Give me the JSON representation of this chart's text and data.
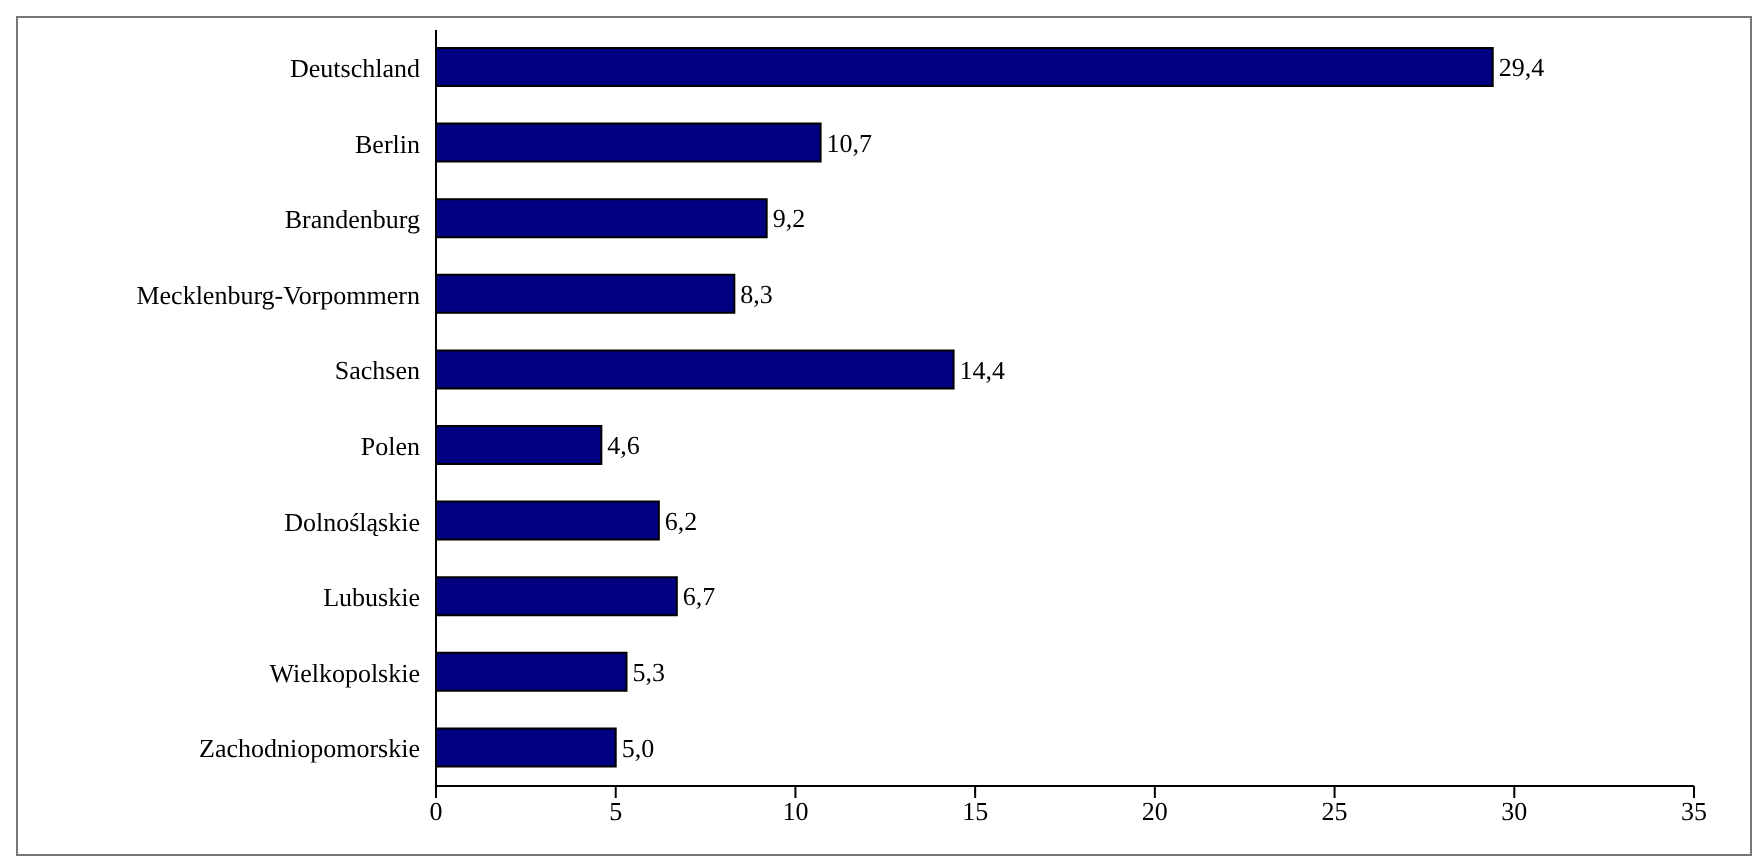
{
  "chart_data": {
    "type": "bar",
    "orientation": "horizontal",
    "categories": [
      "Deutschland",
      "Berlin",
      "Brandenburg",
      "Mecklenburg-Vorpommern",
      "Sachsen",
      "Polen",
      "Dolnośląskie",
      "Lubuskie",
      "Wielkopolskie",
      "Zachodniopomorskie"
    ],
    "values": [
      29.4,
      10.7,
      9.2,
      8.3,
      14.4,
      4.6,
      6.2,
      6.7,
      5.3,
      5.0
    ],
    "value_labels": [
      "29,4",
      "10,7",
      "9,2",
      "8,3",
      "14,4",
      "4,6",
      "6,2",
      "6,7",
      "5,3",
      "5,0"
    ],
    "color": "#000080",
    "xlim": [
      0,
      35
    ],
    "xticks": [
      0,
      5,
      10,
      15,
      20,
      25,
      30,
      35
    ],
    "grid": false
  }
}
